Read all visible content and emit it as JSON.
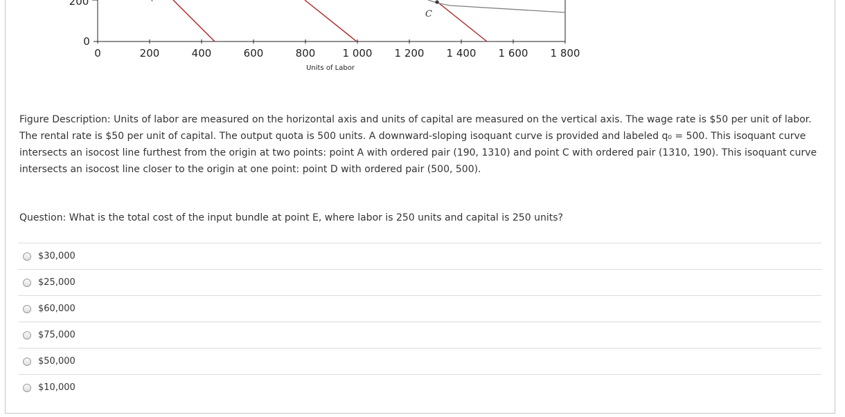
{
  "chart_data": {
    "type": "line",
    "x_ticks": [
      "0",
      "200",
      "400",
      "600",
      "800",
      "1 000",
      "1 200",
      "1 400",
      "1 600",
      "1 800"
    ],
    "y_ticks_visible": [
      "0",
      "200"
    ],
    "xlabel": "Units of Labor",
    "xlim": [
      0,
      1800
    ],
    "point_labels": [
      "C"
    ],
    "colors": {
      "isocost": "#b22222",
      "isoquant": "#808080",
      "axis": "#222222"
    }
  },
  "description": "Figure Description: Units of labor are measured on the horizontal axis and units of capital are measured on the vertical axis. The wage rate is $50 per unit of labor. The rental rate is $50 per unit of capital. The output quota is 500 units. A downward-sloping isoquant curve is provided and labeled q₀ = 500. This isoquant curve intersects an isocost line furthest from the origin at two points: point A with ordered pair (190, 1310) and point C with ordered pair (1310, 190). This isoquant curve intersects an isocost line closer to the origin at one point: point D with ordered pair (500, 500).",
  "question": "Question: What is the total cost of the input bundle at point E, where labor is 250 units and capital is 250 units?",
  "options": [
    "$30,000",
    "$25,000",
    "$60,000",
    "$75,000",
    "$50,000",
    "$10,000"
  ]
}
